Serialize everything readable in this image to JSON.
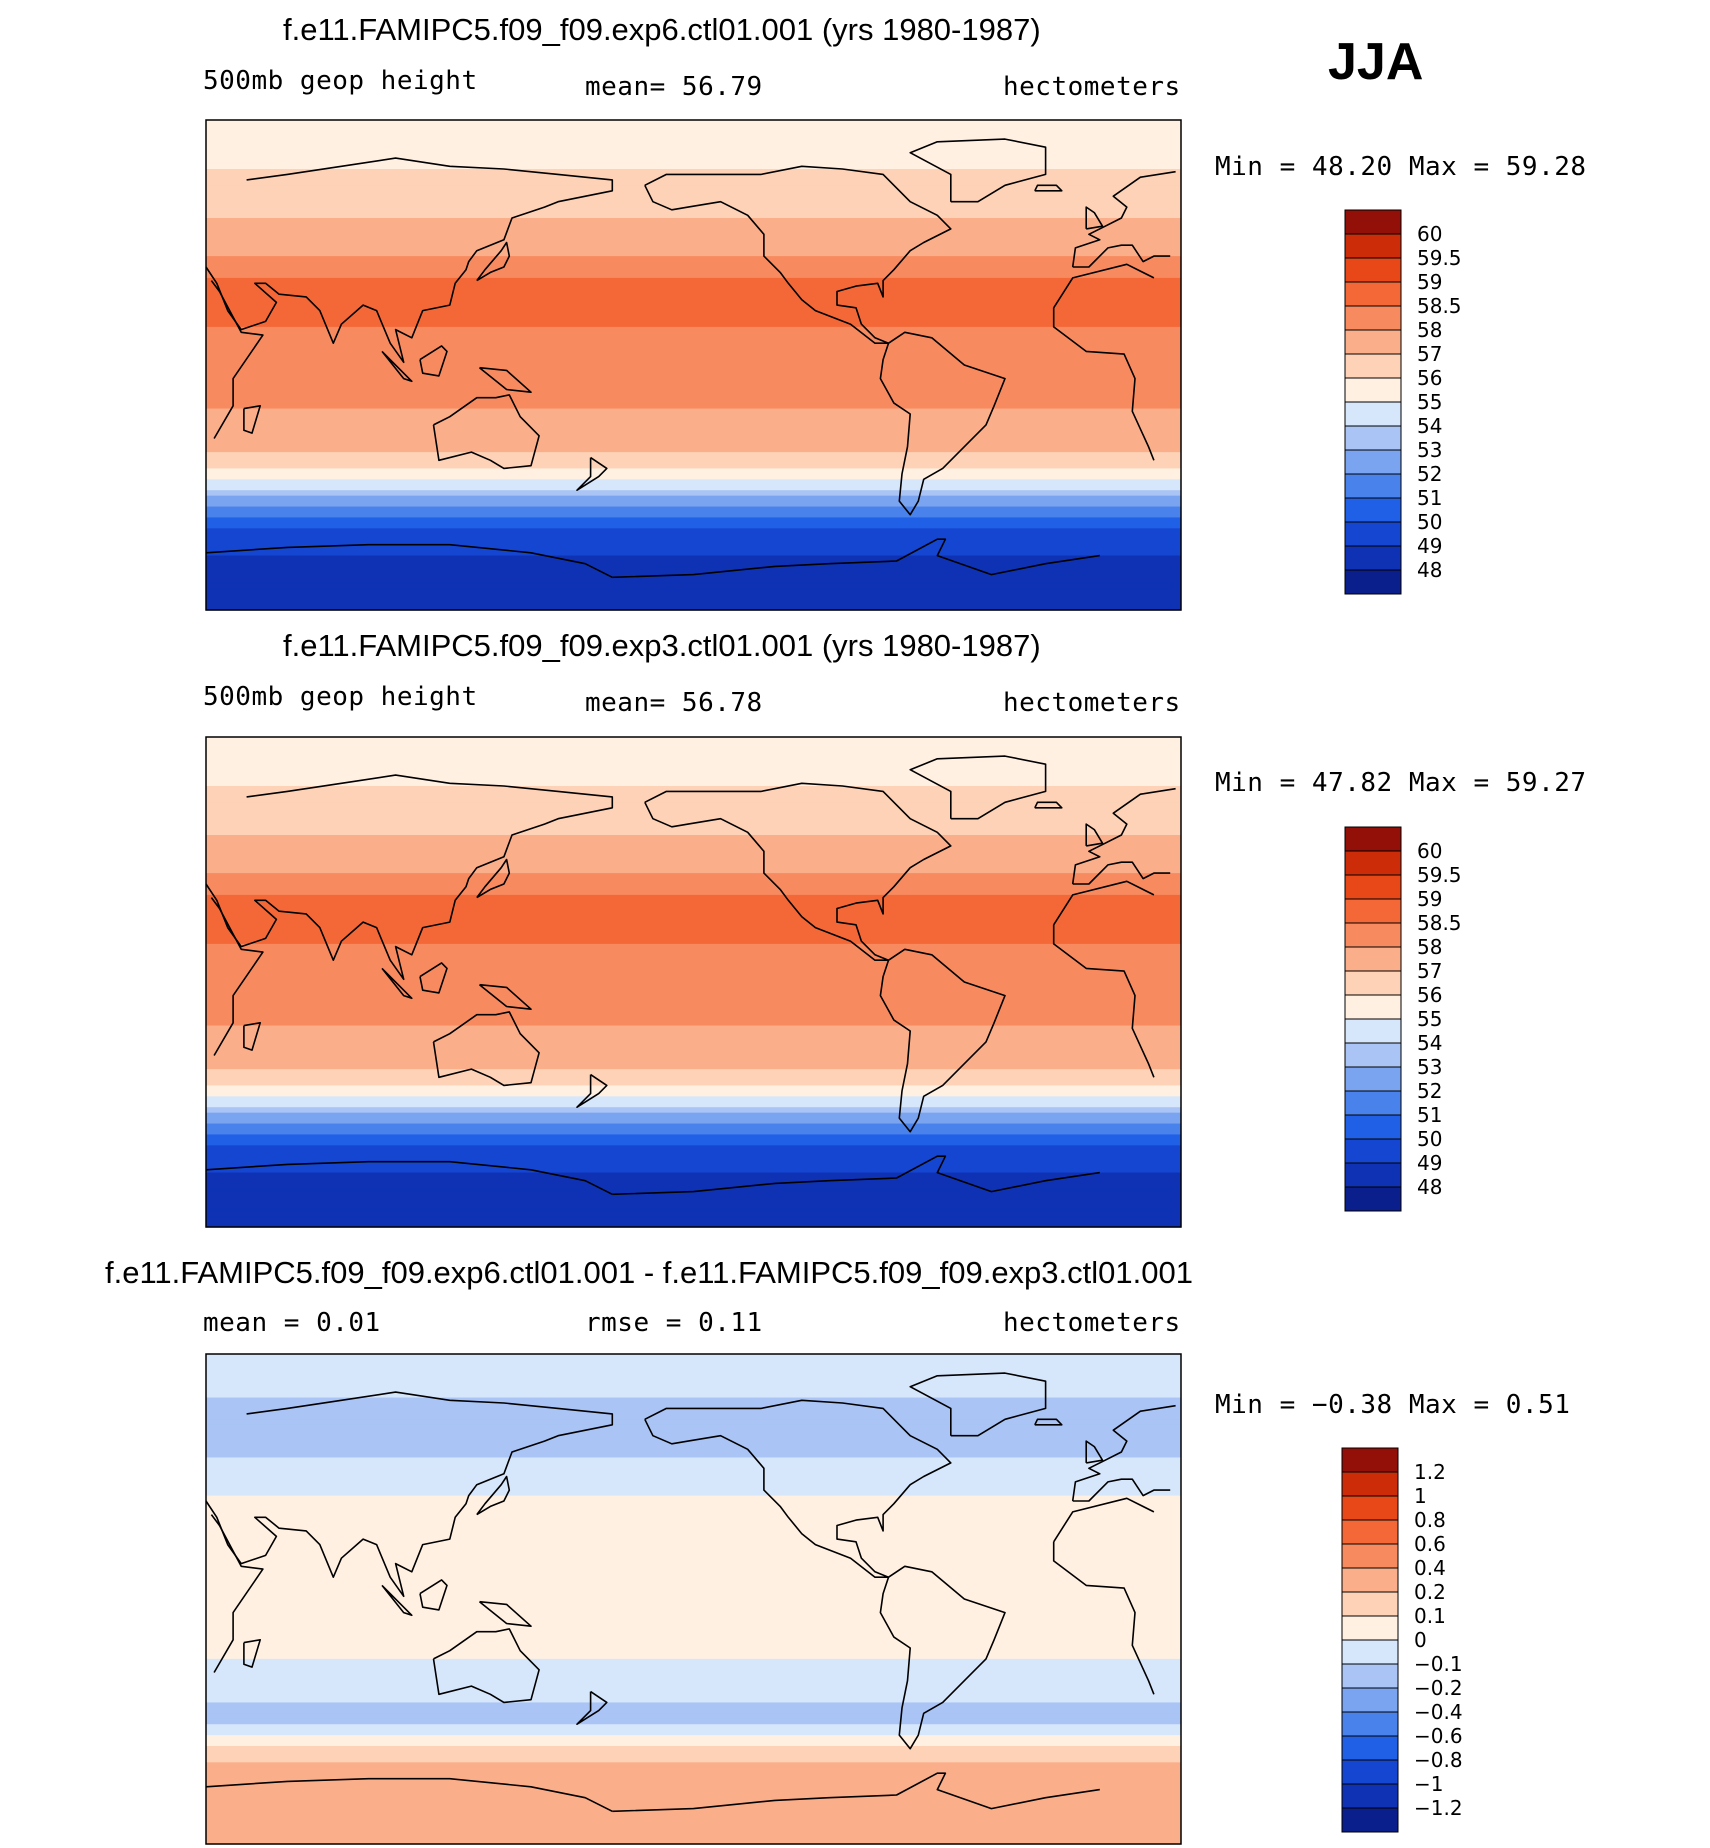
{
  "season": "JJA",
  "colors": {
    "abs_scale": [
      "#0a1e8c",
      "#0f32b4",
      "#1446d2",
      "#2060e6",
      "#4a82ec",
      "#7aa3f0",
      "#a9c4f5",
      "#d6e6fb",
      "#fff0e2",
      "#fdd2b6",
      "#fbae8a",
      "#f88a60",
      "#f46838",
      "#e84818",
      "#cc2c08",
      "#921008"
    ],
    "diff_scale": [
      "#0a1e8c",
      "#0f32b4",
      "#1446d2",
      "#2060e6",
      "#4a82ec",
      "#7aa3f0",
      "#a9c4f5",
      "#d6e6fb",
      "#fff0e2",
      "#fdd2b6",
      "#fbae8a",
      "#f88a60",
      "#f46838",
      "#e84818",
      "#cc2c08",
      "#921008"
    ],
    "coast": "#000000"
  },
  "panels": [
    {
      "title": "f.e11.FAMIPC5.f09_f09.exp6.ctl01.001 (yrs 1980-1987)",
      "left_label": "500mb geop height",
      "mid_label": "mean=   56.79",
      "right_label": "hectometers",
      "minmax": "Min =   48.20 Max =   59.28"
    },
    {
      "title": "f.e11.FAMIPC5.f09_f09.exp3.ctl01.001 (yrs 1980-1987)",
      "left_label": "500mb geop height",
      "mid_label": "mean=   56.78",
      "right_label": "hectometers",
      "minmax": "Min =   47.82 Max =   59.27"
    },
    {
      "title": "f.e11.FAMIPC5.f09_f09.exp6.ctl01.001 - f.e11.FAMIPC5.f09_f09.exp3.ctl01.001",
      "left_label": "mean =    0.01",
      "mid_label": "rmse =    0.11",
      "right_label": "hectometers",
      "minmax": "Min =  −0.38 Max =    0.51"
    }
  ],
  "chart_data": [
    {
      "type": "heatmap",
      "title": "f.e11.FAMIPC5.f09_f09.exp6.ctl01.001 (yrs 1980-1987)",
      "variable": "500mb geop height",
      "units": "hectometers",
      "mean": 56.79,
      "min": 48.2,
      "max": 59.28,
      "colorbar_levels": [
        "60",
        "59.5",
        "59",
        "58.5",
        "58",
        "57",
        "56",
        "55",
        "54",
        "53",
        "52",
        "51",
        "50",
        "49",
        "48"
      ],
      "zonal_profile": [
        {
          "lat": 90,
          "value": 55.2
        },
        {
          "lat": 75,
          "value": 55.8
        },
        {
          "lat": 60,
          "value": 56.6
        },
        {
          "lat": 45,
          "value": 57.6
        },
        {
          "lat": 30,
          "value": 58.6
        },
        {
          "lat": 15,
          "value": 58.5
        },
        {
          "lat": 0,
          "value": 58.3
        },
        {
          "lat": -15,
          "value": 58.0
        },
        {
          "lat": -30,
          "value": 57.2
        },
        {
          "lat": -40,
          "value": 55.5
        },
        {
          "lat": -50,
          "value": 52.5
        },
        {
          "lat": -60,
          "value": 50.0
        },
        {
          "lat": -75,
          "value": 48.6
        },
        {
          "lat": -90,
          "value": 48.3
        }
      ]
    },
    {
      "type": "heatmap",
      "title": "f.e11.FAMIPC5.f09_f09.exp3.ctl01.001 (yrs 1980-1987)",
      "variable": "500mb geop height",
      "units": "hectometers",
      "mean": 56.78,
      "min": 47.82,
      "max": 59.27,
      "colorbar_levels": [
        "60",
        "59.5",
        "59",
        "58.5",
        "58",
        "57",
        "56",
        "55",
        "54",
        "53",
        "52",
        "51",
        "50",
        "49",
        "48"
      ],
      "zonal_profile": [
        {
          "lat": 90,
          "value": 55.2
        },
        {
          "lat": 75,
          "value": 55.8
        },
        {
          "lat": 60,
          "value": 56.6
        },
        {
          "lat": 45,
          "value": 57.6
        },
        {
          "lat": 30,
          "value": 58.6
        },
        {
          "lat": 15,
          "value": 58.5
        },
        {
          "lat": 0,
          "value": 58.3
        },
        {
          "lat": -15,
          "value": 58.0
        },
        {
          "lat": -30,
          "value": 57.2
        },
        {
          "lat": -40,
          "value": 55.5
        },
        {
          "lat": -50,
          "value": 52.5
        },
        {
          "lat": -60,
          "value": 50.0
        },
        {
          "lat": -75,
          "value": 48.4
        },
        {
          "lat": -90,
          "value": 48.0
        }
      ]
    },
    {
      "type": "heatmap",
      "title": "f.e11.FAMIPC5.f09_f09.exp6.ctl01.001 - f.e11.FAMIPC5.f09_f09.exp3.ctl01.001",
      "units": "hectometers",
      "mean": 0.01,
      "rmse": 0.11,
      "min": -0.38,
      "max": 0.51,
      "colorbar_levels": [
        "1.2",
        "1",
        "0.8",
        "0.6",
        "0.4",
        "0.2",
        "0.1",
        "0",
        "−0.1",
        "−0.2",
        "−0.4",
        "−0.6",
        "−0.8",
        "−1",
        "−1.2"
      ],
      "zonal_profile": [
        {
          "lat": 90,
          "value": -0.05
        },
        {
          "lat": 75,
          "value": -0.1
        },
        {
          "lat": 60,
          "value": -0.15
        },
        {
          "lat": 45,
          "value": -0.05
        },
        {
          "lat": 30,
          "value": 0.05
        },
        {
          "lat": 15,
          "value": 0.05
        },
        {
          "lat": 0,
          "value": 0.05
        },
        {
          "lat": -15,
          "value": 0.05
        },
        {
          "lat": -30,
          "value": -0.05
        },
        {
          "lat": -45,
          "value": -0.15
        },
        {
          "lat": -55,
          "value": 0.15
        },
        {
          "lat": -70,
          "value": 0.3
        },
        {
          "lat": -90,
          "value": 0.2
        }
      ]
    }
  ]
}
